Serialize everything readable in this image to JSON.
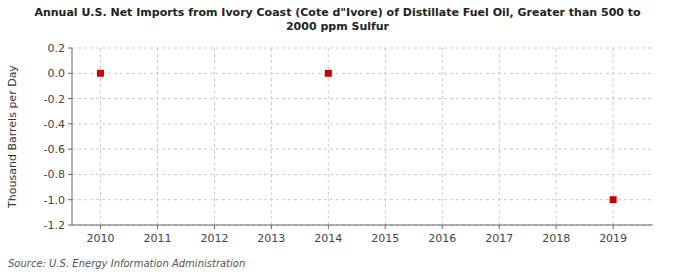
{
  "chart_data": {
    "type": "scatter",
    "title": "Annual U.S. Net Imports from Ivory Coast (Cote d\"Ivore) of Distillate Fuel Oil, Greater than 500 to\n2000 ppm Sulfur",
    "y_label": "Thousand Barrels per Day",
    "source": "Source: U.S. Energy Information Administration",
    "x": [
      2010,
      2014,
      2019
    ],
    "values": [
      0.0,
      0.0,
      -1.0
    ],
    "color": "#cc0000",
    "marker": "square",
    "xlim": [
      2009.5,
      2019.7
    ],
    "ylim": [
      -1.2,
      0.2
    ],
    "xticks": [
      2010,
      2011,
      2012,
      2013,
      2014,
      2015,
      2016,
      2017,
      2018,
      2019
    ],
    "yticks": [
      -1.2,
      {
        "value": -1.0,
        "label": "-1.0"
      },
      -0.8,
      -0.6,
      -0.4,
      -0.2,
      {
        "value": 0.0,
        "label": "0.0"
      },
      0.2
    ],
    "grid": true
  }
}
